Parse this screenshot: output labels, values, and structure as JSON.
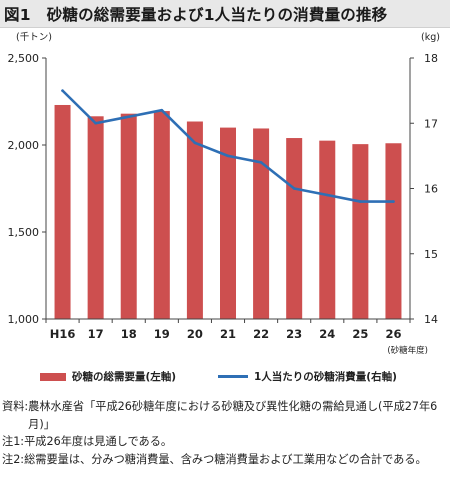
{
  "page": {
    "figure_number": "図1",
    "title": "砂糖の総需要量および1人当たりの消費量の推移"
  },
  "chart_data": {
    "type": "bar",
    "title": "砂糖の総需要量および1人当たりの消費量の推移",
    "categories": [
      "H16",
      "17",
      "18",
      "19",
      "20",
      "21",
      "22",
      "23",
      "24",
      "25",
      "26"
    ],
    "x_unit_label": "(砂糖年度)",
    "y_left": {
      "unit_label": "(千トン)",
      "ylim": [
        1000,
        2500
      ],
      "ticks": [
        1000,
        1500,
        2000,
        2500
      ],
      "tick_labels": [
        "1,000",
        "1,500",
        "2,000",
        "2,500"
      ]
    },
    "y_right": {
      "unit_label": "(kg)",
      "ylim": [
        14,
        18
      ],
      "ticks": [
        14,
        15,
        16,
        17,
        18
      ],
      "tick_labels": [
        "14",
        "15",
        "16",
        "17",
        "18"
      ]
    },
    "series": [
      {
        "name": "砂糖の総需要量(左軸)",
        "type": "bar",
        "axis": "left",
        "color": "#cd4f4f",
        "values": [
          2230,
          2165,
          2180,
          2195,
          2135,
          2100,
          2095,
          2040,
          2025,
          2005,
          2010
        ]
      },
      {
        "name": "1人当たりの砂糖消費量(右軸)",
        "type": "line",
        "axis": "right",
        "color": "#2e6fb5",
        "values": [
          17.5,
          17.0,
          17.1,
          17.2,
          16.7,
          16.5,
          16.4,
          16.0,
          15.9,
          15.8,
          15.8
        ]
      }
    ],
    "grid": false,
    "legend_position": "bottom"
  },
  "notes": [
    {
      "label": "資料:",
      "text": "農林水産省「平成26砂糖年度における砂糖及び異性化糖の需給見通し(平成27年6月)」"
    },
    {
      "label": "注1:",
      "text": "平成26年度は見通しである。"
    },
    {
      "label": "注2:",
      "text": "総需要量は、分みつ糖消費量、含みつ糖消費量および工業用などの合計である。"
    }
  ]
}
